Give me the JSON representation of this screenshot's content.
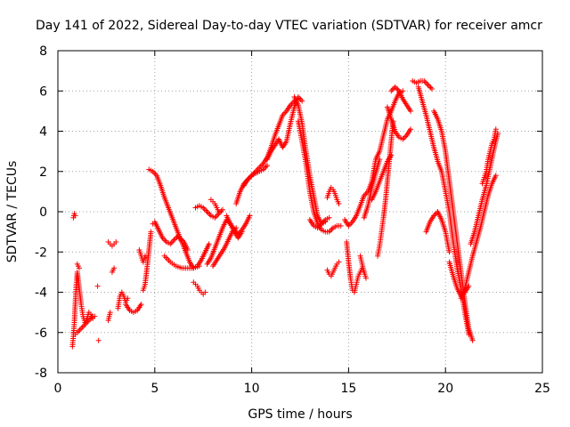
{
  "chart_data": {
    "type": "scatter",
    "title": "Day 141 of 2022, Sidereal Day-to-day VTEC variation (SDTVAR) for receiver amcr",
    "xlabel": "GPS time / hours",
    "ylabel": "SDTVAR / TECUs",
    "xlim": [
      0,
      25
    ],
    "ylim": [
      -8,
      8
    ],
    "xticks": [
      0,
      5,
      10,
      15,
      20,
      25
    ],
    "yticks": [
      -8,
      -6,
      -4,
      -2,
      0,
      2,
      4,
      6,
      8
    ],
    "grid": true,
    "marker": "+",
    "color": "#ff0000",
    "series": [
      {
        "name": "s1",
        "x": [
          0.8,
          0.85,
          0.9
        ],
        "y": [
          -0.3,
          -0.1,
          -0.2
        ]
      },
      {
        "name": "s2",
        "x": [
          0.75,
          0.8,
          0.85,
          0.9,
          0.95,
          1.0,
          1.1,
          1.2,
          1.3,
          1.4,
          1.5,
          1.6,
          1.7,
          1.8,
          1.9
        ],
        "y": [
          -6.7,
          -6.2,
          -5.5,
          -4.5,
          -3.6,
          -3.0,
          -3.8,
          -4.6,
          -5.2,
          -5.5,
          -5.3,
          -5.0,
          -5.1,
          -5.3,
          -5.2
        ]
      },
      {
        "name": "s3",
        "x": [
          0.8,
          0.9,
          1.0,
          1.2,
          1.4,
          1.6,
          1.8
        ],
        "y": [
          -6.0,
          -6.1,
          -6.0,
          -5.8,
          -5.6,
          -5.4,
          -5.2
        ]
      },
      {
        "name": "s4",
        "x": [
          1.0,
          1.1
        ],
        "y": [
          -2.6,
          -2.8
        ]
      },
      {
        "name": "s5",
        "x": [
          2.1
        ],
        "y": [
          -6.4
        ]
      },
      {
        "name": "s6",
        "x": [
          2.05
        ],
        "y": [
          -3.7
        ]
      },
      {
        "name": "s7",
        "x": [
          2.6,
          2.7,
          2.8,
          2.9,
          3.0
        ],
        "y": [
          -1.5,
          -1.6,
          -1.7,
          -1.6,
          -1.5
        ]
      },
      {
        "name": "s8",
        "x": [
          2.6,
          2.7
        ],
        "y": [
          -5.4,
          -5.0
        ]
      },
      {
        "name": "s9",
        "x": [
          2.8,
          2.9
        ],
        "y": [
          -3.0,
          -2.8
        ]
      },
      {
        "name": "s10",
        "x": [
          3.1,
          3.2,
          3.3,
          3.4,
          3.5,
          3.6
        ],
        "y": [
          -4.8,
          -4.2,
          -4.0,
          -4.2,
          -4.5,
          -4.3
        ]
      },
      {
        "name": "s11",
        "x": [
          3.5,
          3.7,
          3.9,
          4.1,
          4.3
        ],
        "y": [
          -4.6,
          -4.9,
          -5.0,
          -4.9,
          -4.6
        ]
      },
      {
        "name": "s12",
        "x": [
          4.2,
          4.3,
          4.4,
          4.5
        ],
        "y": [
          -1.9,
          -2.2,
          -2.5,
          -2.2
        ]
      },
      {
        "name": "s13",
        "x": [
          4.4,
          4.5,
          4.6,
          4.7,
          4.8
        ],
        "y": [
          -3.9,
          -3.6,
          -2.8,
          -1.9,
          -1.0
        ]
      },
      {
        "name": "s14",
        "x": [
          4.7,
          4.9,
          5.1,
          5.3,
          5.5,
          5.7,
          5.9,
          6.1,
          6.3,
          6.5,
          6.7
        ],
        "y": [
          2.1,
          2.0,
          1.8,
          1.3,
          0.7,
          0.2,
          -0.3,
          -0.8,
          -1.3,
          -1.5,
          -1.9
        ]
      },
      {
        "name": "s15",
        "x": [
          4.9,
          5.0,
          5.2,
          5.4,
          5.6,
          5.8,
          6.0,
          6.2,
          6.4,
          6.6,
          6.8,
          7.0,
          7.2,
          7.4,
          7.6,
          7.8
        ],
        "y": [
          -0.6,
          -0.5,
          -0.9,
          -1.3,
          -1.5,
          -1.6,
          -1.4,
          -1.2,
          -1.5,
          -2.0,
          -2.5,
          -2.8,
          -2.7,
          -2.4,
          -2.0,
          -1.6
        ]
      },
      {
        "name": "s16",
        "x": [
          5.5,
          5.8,
          6.1,
          6.4,
          6.7,
          7.0,
          7.3
        ],
        "y": [
          -2.2,
          -2.5,
          -2.7,
          -2.8,
          -2.8,
          -2.8,
          -2.7
        ]
      },
      {
        "name": "s17",
        "x": [
          7.0,
          7.1,
          7.2,
          7.3,
          7.4,
          7.5,
          7.6
        ],
        "y": [
          -3.5,
          -3.6,
          -3.7,
          -3.9,
          -4.0,
          -4.1,
          -4.0
        ]
      },
      {
        "name": "s18",
        "x": [
          7.1,
          7.3,
          7.5,
          7.7,
          7.9,
          8.1,
          8.3,
          8.5
        ],
        "y": [
          0.2,
          0.3,
          0.2,
          0.0,
          -0.2,
          -0.3,
          -0.1,
          0.1
        ]
      },
      {
        "name": "s19",
        "x": [
          7.7,
          7.9,
          8.1,
          8.3,
          8.5,
          8.7,
          8.9,
          9.1,
          9.3,
          9.5
        ],
        "y": [
          -2.6,
          -2.3,
          -1.8,
          -1.3,
          -0.8,
          -0.4,
          -0.6,
          -1.0,
          -1.3,
          -1.0
        ]
      },
      {
        "name": "s20",
        "x": [
          7.9,
          8.0,
          8.1,
          8.2,
          8.3
        ],
        "y": [
          0.6,
          0.5,
          0.4,
          0.2,
          0.0
        ]
      },
      {
        "name": "s21",
        "x": [
          8.0,
          8.2,
          8.4,
          8.6,
          8.8,
          9.0,
          9.2
        ],
        "y": [
          -2.7,
          -2.4,
          -2.1,
          -1.8,
          -1.4,
          -1.0,
          -0.8
        ]
      },
      {
        "name": "s22",
        "x": [
          8.7,
          8.9,
          9.1,
          9.3,
          9.5,
          9.7,
          9.9
        ],
        "y": [
          -0.2,
          -0.6,
          -0.9,
          -1.1,
          -0.9,
          -0.6,
          -0.2
        ]
      },
      {
        "name": "s23",
        "x": [
          9.2,
          9.4,
          9.6,
          9.8,
          10.0,
          10.2,
          10.4,
          10.6,
          10.8,
          11.0,
          11.2,
          11.4,
          11.6,
          11.8,
          12.0,
          12.2
        ],
        "y": [
          0.4,
          1.0,
          1.4,
          1.6,
          1.8,
          2.0,
          2.2,
          2.4,
          2.7,
          3.2,
          3.8,
          4.3,
          4.8,
          5.0,
          5.3,
          5.5
        ]
      },
      {
        "name": "s24",
        "x": [
          9.6,
          9.8,
          10.0,
          10.2,
          10.4,
          10.6,
          10.8
        ],
        "y": [
          1.3,
          1.6,
          1.8,
          1.9,
          2.0,
          2.1,
          2.3
        ]
      },
      {
        "name": "s25",
        "x": [
          10.8,
          11.0,
          11.2,
          11.4,
          11.6,
          11.8,
          12.0,
          12.2,
          12.4,
          12.6
        ],
        "y": [
          2.6,
          3.0,
          3.3,
          3.6,
          3.2,
          3.5,
          4.4,
          5.2,
          5.7,
          5.5
        ]
      },
      {
        "name": "s26",
        "x": [
          12.4,
          12.6,
          12.8,
          13.0,
          13.2,
          13.4,
          13.6,
          13.8,
          14.0,
          14.2,
          14.4,
          14.6
        ],
        "y": [
          4.5,
          3.5,
          2.4,
          1.0,
          0.0,
          -0.6,
          -0.9,
          -1.0,
          -1.0,
          -0.8,
          -0.7,
          -0.7
        ]
      },
      {
        "name": "s27",
        "x": [
          12.2,
          12.4,
          12.6,
          12.8,
          13.0,
          13.2,
          13.4,
          13.6,
          13.8
        ],
        "y": [
          5.7,
          5.3,
          4.4,
          3.0,
          1.8,
          0.8,
          -0.2,
          -0.6,
          -0.5
        ]
      },
      {
        "name": "s28",
        "x": [
          13.0,
          13.2,
          13.4,
          13.6,
          13.8,
          14.0
        ],
        "y": [
          -0.4,
          -0.7,
          -0.8,
          -0.6,
          -0.4,
          -0.3
        ]
      },
      {
        "name": "s29",
        "x": [
          13.9,
          14.0,
          14.1,
          14.2,
          14.3,
          14.4,
          14.5
        ],
        "y": [
          0.7,
          1.0,
          1.2,
          1.1,
          0.9,
          0.6,
          0.4
        ]
      },
      {
        "name": "s30",
        "x": [
          13.9,
          14.0,
          14.1,
          14.2,
          14.3,
          14.4,
          14.5
        ],
        "y": [
          -2.9,
          -3.1,
          -3.2,
          -3.0,
          -2.8,
          -2.6,
          -2.5
        ]
      },
      {
        "name": "s31",
        "x": [
          14.8,
          15.0,
          15.2,
          15.4,
          15.6,
          15.8,
          16.0,
          16.2,
          16.4,
          16.6,
          16.8,
          17.0,
          17.2,
          17.4,
          17.6,
          17.8
        ],
        "y": [
          -0.4,
          -0.7,
          -0.5,
          -0.2,
          0.3,
          0.8,
          1.0,
          1.5,
          2.6,
          3.0,
          3.8,
          4.6,
          5.0,
          5.5,
          5.9,
          6.0
        ]
      },
      {
        "name": "s32",
        "x": [
          14.9,
          15.0,
          15.1,
          15.2,
          15.3,
          15.4,
          15.5,
          15.6,
          15.7,
          15.8
        ],
        "y": [
          -1.5,
          -2.5,
          -3.3,
          -3.9,
          -4.0,
          -3.6,
          -3.2,
          -3.0,
          -2.8,
          -3.0
        ]
      },
      {
        "name": "s33",
        "x": [
          15.6,
          15.7,
          15.8,
          15.9
        ],
        "y": [
          -2.2,
          -2.6,
          -3.0,
          -3.3
        ]
      },
      {
        "name": "s34",
        "x": [
          15.8,
          16.0,
          16.2,
          16.4,
          16.6
        ],
        "y": [
          -0.3,
          0.3,
          1.2,
          1.9,
          2.6
        ]
      },
      {
        "name": "s35",
        "x": [
          16.2,
          16.4,
          16.6,
          16.8,
          17.0,
          17.2
        ],
        "y": [
          0.6,
          1.0,
          1.5,
          2.0,
          2.5,
          2.8
        ]
      },
      {
        "name": "s36",
        "x": [
          16.5,
          16.6,
          16.7,
          16.8,
          16.9,
          17.0,
          17.1,
          17.2,
          17.3
        ],
        "y": [
          -2.2,
          -1.7,
          -1.0,
          -0.3,
          0.5,
          1.5,
          2.5,
          3.5,
          4.5
        ]
      },
      {
        "name": "s37",
        "x": [
          17.0,
          17.2,
          17.4,
          17.6,
          17.8,
          18.0,
          18.2
        ],
        "y": [
          5.2,
          4.6,
          4.0,
          3.7,
          3.6,
          3.8,
          4.1
        ]
      },
      {
        "name": "s38",
        "x": [
          17.2,
          17.4,
          17.6,
          17.8,
          18.0,
          18.2
        ],
        "y": [
          6.0,
          6.2,
          6.0,
          5.6,
          5.3,
          5.0
        ]
      },
      {
        "name": "s39",
        "x": [
          18.3,
          18.5,
          18.7,
          18.9,
          19.1,
          19.3
        ],
        "y": [
          6.5,
          6.4,
          6.5,
          6.5,
          6.3,
          6.1
        ]
      },
      {
        "name": "s40",
        "x": [
          18.6,
          18.8,
          19.0,
          19.2,
          19.4,
          19.6,
          19.8,
          20.0,
          20.2,
          20.4,
          20.6,
          20.8,
          21.0,
          21.2
        ],
        "y": [
          6.2,
          5.5,
          4.8,
          4.0,
          3.2,
          2.5,
          2.0,
          1.0,
          0.0,
          -1.5,
          -2.8,
          -3.8,
          -5.0,
          -6.1
        ]
      },
      {
        "name": "s41",
        "x": [
          19.4,
          19.6,
          19.8,
          20.0,
          20.2,
          20.4,
          20.6,
          20.8,
          21.0,
          21.2,
          21.4
        ],
        "y": [
          5.0,
          4.6,
          4.0,
          3.0,
          1.5,
          0.0,
          -1.5,
          -3.0,
          -4.5,
          -5.8,
          -6.4
        ]
      },
      {
        "name": "s42",
        "x": [
          19.0,
          19.2,
          19.4,
          19.6,
          19.8,
          20.0,
          20.2
        ],
        "y": [
          -1.0,
          -0.5,
          -0.2,
          0.0,
          -0.4,
          -1.0,
          -2.0
        ]
      },
      {
        "name": "s43",
        "x": [
          20.2,
          20.4,
          20.6,
          20.8,
          21.0,
          21.2
        ],
        "y": [
          -2.5,
          -3.2,
          -3.8,
          -4.2,
          -4.0,
          -3.7
        ]
      },
      {
        "name": "s44",
        "x": [
          20.8,
          21.0,
          21.2,
          21.4,
          21.6,
          21.8,
          22.0,
          22.2,
          22.4,
          22.6
        ],
        "y": [
          -4.3,
          -3.8,
          -3.0,
          -2.2,
          -1.5,
          -0.8,
          0.0,
          0.8,
          1.4,
          1.8
        ]
      },
      {
        "name": "s45",
        "x": [
          21.3,
          21.5,
          21.7,
          21.9,
          22.1,
          22.3,
          22.5,
          22.7
        ],
        "y": [
          -1.6,
          -1.0,
          -0.2,
          0.6,
          1.3,
          2.2,
          3.1,
          3.9
        ]
      },
      {
        "name": "s46",
        "x": [
          21.9,
          22.0,
          22.1,
          22.2,
          22.3,
          22.4,
          22.5,
          22.6
        ],
        "y": [
          1.4,
          1.7,
          2.0,
          2.6,
          3.0,
          3.4,
          3.6,
          4.1
        ]
      }
    ]
  }
}
